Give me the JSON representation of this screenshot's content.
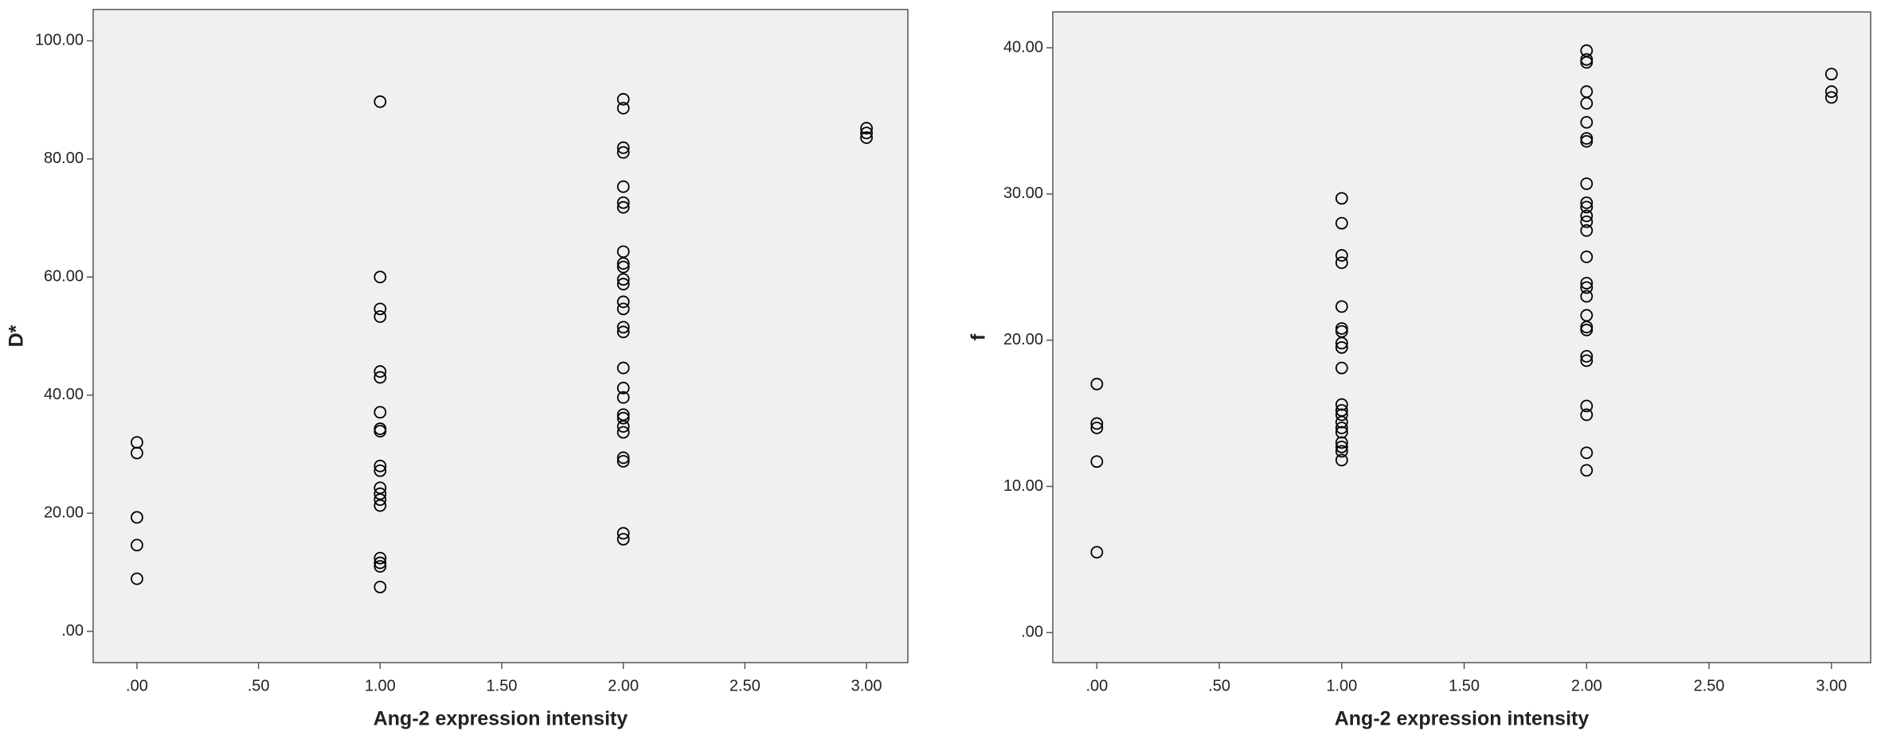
{
  "chart_data": [
    {
      "type": "scatter",
      "x_label": "Ang-2 expression intensity",
      "y_label": "D*",
      "xlim": [
        -0.18,
        3.17
      ],
      "ylim": [
        -5.3,
        105.3
      ],
      "xticks": [
        {
          "value": 0,
          "label": ".00"
        },
        {
          "value": 0.5,
          "label": ".50"
        },
        {
          "value": 1,
          "label": "1.00"
        },
        {
          "value": 1.5,
          "label": "1.50"
        },
        {
          "value": 2,
          "label": "2.00"
        },
        {
          "value": 2.5,
          "label": "2.50"
        },
        {
          "value": 3,
          "label": "3.00"
        }
      ],
      "yticks": [
        {
          "value": 0,
          "label": ".00"
        },
        {
          "value": 20,
          "label": "20.00"
        },
        {
          "value": 40,
          "label": "40.00"
        },
        {
          "value": 60,
          "label": "60.00"
        },
        {
          "value": 80,
          "label": "80.00"
        },
        {
          "value": 100,
          "label": "100.00"
        }
      ],
      "color": "#000000",
      "background": "#f0f0f0",
      "x": [
        0,
        0,
        0,
        0,
        0,
        1,
        1,
        1,
        1,
        1,
        1,
        1,
        1,
        1,
        1,
        1,
        1,
        1,
        1,
        1,
        1,
        1,
        1,
        1,
        2,
        2,
        2,
        2,
        2,
        2,
        2,
        2,
        2,
        2,
        2,
        2,
        2,
        2,
        2,
        2,
        2,
        2,
        2,
        2,
        2,
        2,
        2,
        2,
        2,
        2,
        2,
        3,
        3,
        3
      ],
      "values": [
        32.0,
        30.2,
        19.3,
        14.6,
        8.9,
        89.7,
        60.0,
        54.6,
        53.3,
        44.0,
        43.0,
        37.1,
        34.3,
        33.9,
        28.0,
        27.2,
        24.3,
        23.3,
        22.3,
        21.3,
        12.4,
        11.6,
        11.0,
        7.5,
        90.1,
        88.6,
        81.9,
        81.1,
        75.3,
        72.6,
        71.8,
        64.3,
        62.3,
        61.7,
        59.6,
        58.8,
        55.8,
        54.6,
        51.5,
        50.7,
        44.6,
        41.2,
        39.6,
        36.7,
        36.1,
        34.7,
        33.7,
        29.4,
        28.8,
        16.6,
        15.6,
        85.2,
        84.4,
        83.6
      ]
    },
    {
      "type": "scatter",
      "x_label": "Ang-2 expression intensity",
      "y_label": "f",
      "xlim": [
        -0.18,
        3.16
      ],
      "ylim": [
        -2.05,
        42.45
      ],
      "xticks": [
        {
          "value": 0,
          "label": ".00"
        },
        {
          "value": 0.5,
          "label": ".50"
        },
        {
          "value": 1,
          "label": "1.00"
        },
        {
          "value": 1.5,
          "label": "1.50"
        },
        {
          "value": 2,
          "label": "2.00"
        },
        {
          "value": 2.5,
          "label": "2.50"
        },
        {
          "value": 3,
          "label": "3.00"
        }
      ],
      "yticks": [
        {
          "value": 0,
          "label": ".00"
        },
        {
          "value": 10,
          "label": "10.00"
        },
        {
          "value": 20,
          "label": "20.00"
        },
        {
          "value": 30,
          "label": "30.00"
        },
        {
          "value": 40,
          "label": "40.00"
        }
      ],
      "color": "#000000",
      "background": "#f0f0f0",
      "x": [
        0,
        0,
        0,
        0,
        0,
        1,
        1,
        1,
        1,
        1,
        1,
        1,
        1,
        1,
        1,
        1,
        1,
        1,
        1,
        1,
        1,
        1,
        1,
        1,
        1,
        2,
        2,
        2,
        2,
        2,
        2,
        2,
        2,
        2,
        2,
        2,
        2,
        2,
        2,
        2,
        2,
        2,
        2,
        2,
        2,
        2,
        2,
        2,
        2,
        2,
        2,
        2,
        3,
        3,
        3
      ],
      "values": [
        17.0,
        14.3,
        14.0,
        11.7,
        5.5,
        29.7,
        28.0,
        25.8,
        25.3,
        22.3,
        20.8,
        20.6,
        19.8,
        19.5,
        18.1,
        15.6,
        15.2,
        14.9,
        14.4,
        14.0,
        13.7,
        13.0,
        12.7,
        12.4,
        11.8,
        39.8,
        39.2,
        39.0,
        37.0,
        36.2,
        34.9,
        33.8,
        33.6,
        30.7,
        29.4,
        29.1,
        28.5,
        28.1,
        27.5,
        25.7,
        23.9,
        23.6,
        23.0,
        21.7,
        20.9,
        20.7,
        18.9,
        18.6,
        15.5,
        14.9,
        12.3,
        11.1,
        38.2,
        37.0,
        36.6
      ]
    }
  ]
}
